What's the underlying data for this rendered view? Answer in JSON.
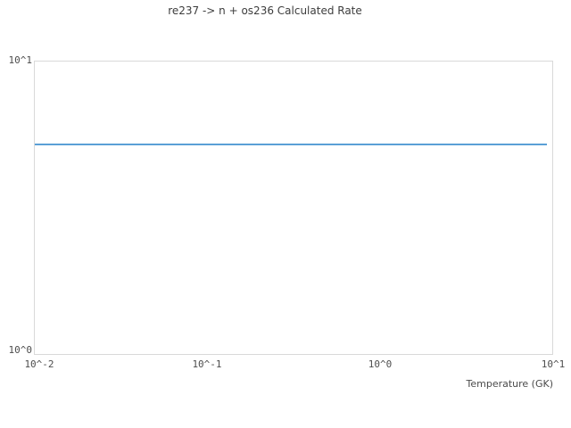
{
  "title": "re237 -> n + os236 Calculated Rate",
  "axes": {
    "x": {
      "label": "Temperature (GK)",
      "ticks": [
        "10^-2",
        "10^-1",
        "10^0",
        "10^1"
      ]
    },
    "y": {
      "ticks": [
        "10^0",
        "10^1"
      ]
    }
  },
  "colors": {
    "line": "#5a9fd6",
    "plot_border": "#d9d9d9",
    "title_text": "#3d3d3d",
    "tick_text": "#4d4d4d"
  },
  "chart_data": {
    "type": "line",
    "title": "re237 -> n + os236 Calculated Rate",
    "xlabel": "Temperature (GK)",
    "ylabel": "",
    "xscale": "log",
    "yscale": "log",
    "xlim": [
      0.01,
      10
    ],
    "ylim": [
      1,
      10
    ],
    "x_tick_labels": [
      "10^-2",
      "10^-1",
      "10^0",
      "10^1"
    ],
    "y_tick_labels": [
      "10^0",
      "10^1"
    ],
    "grid": false,
    "legend_position": "none",
    "series": [
      {
        "name": "Calculated Rate",
        "color": "#5a9fd6",
        "x": [
          0.01,
          9.1
        ],
        "y": [
          5.2,
          5.2
        ]
      }
    ]
  }
}
